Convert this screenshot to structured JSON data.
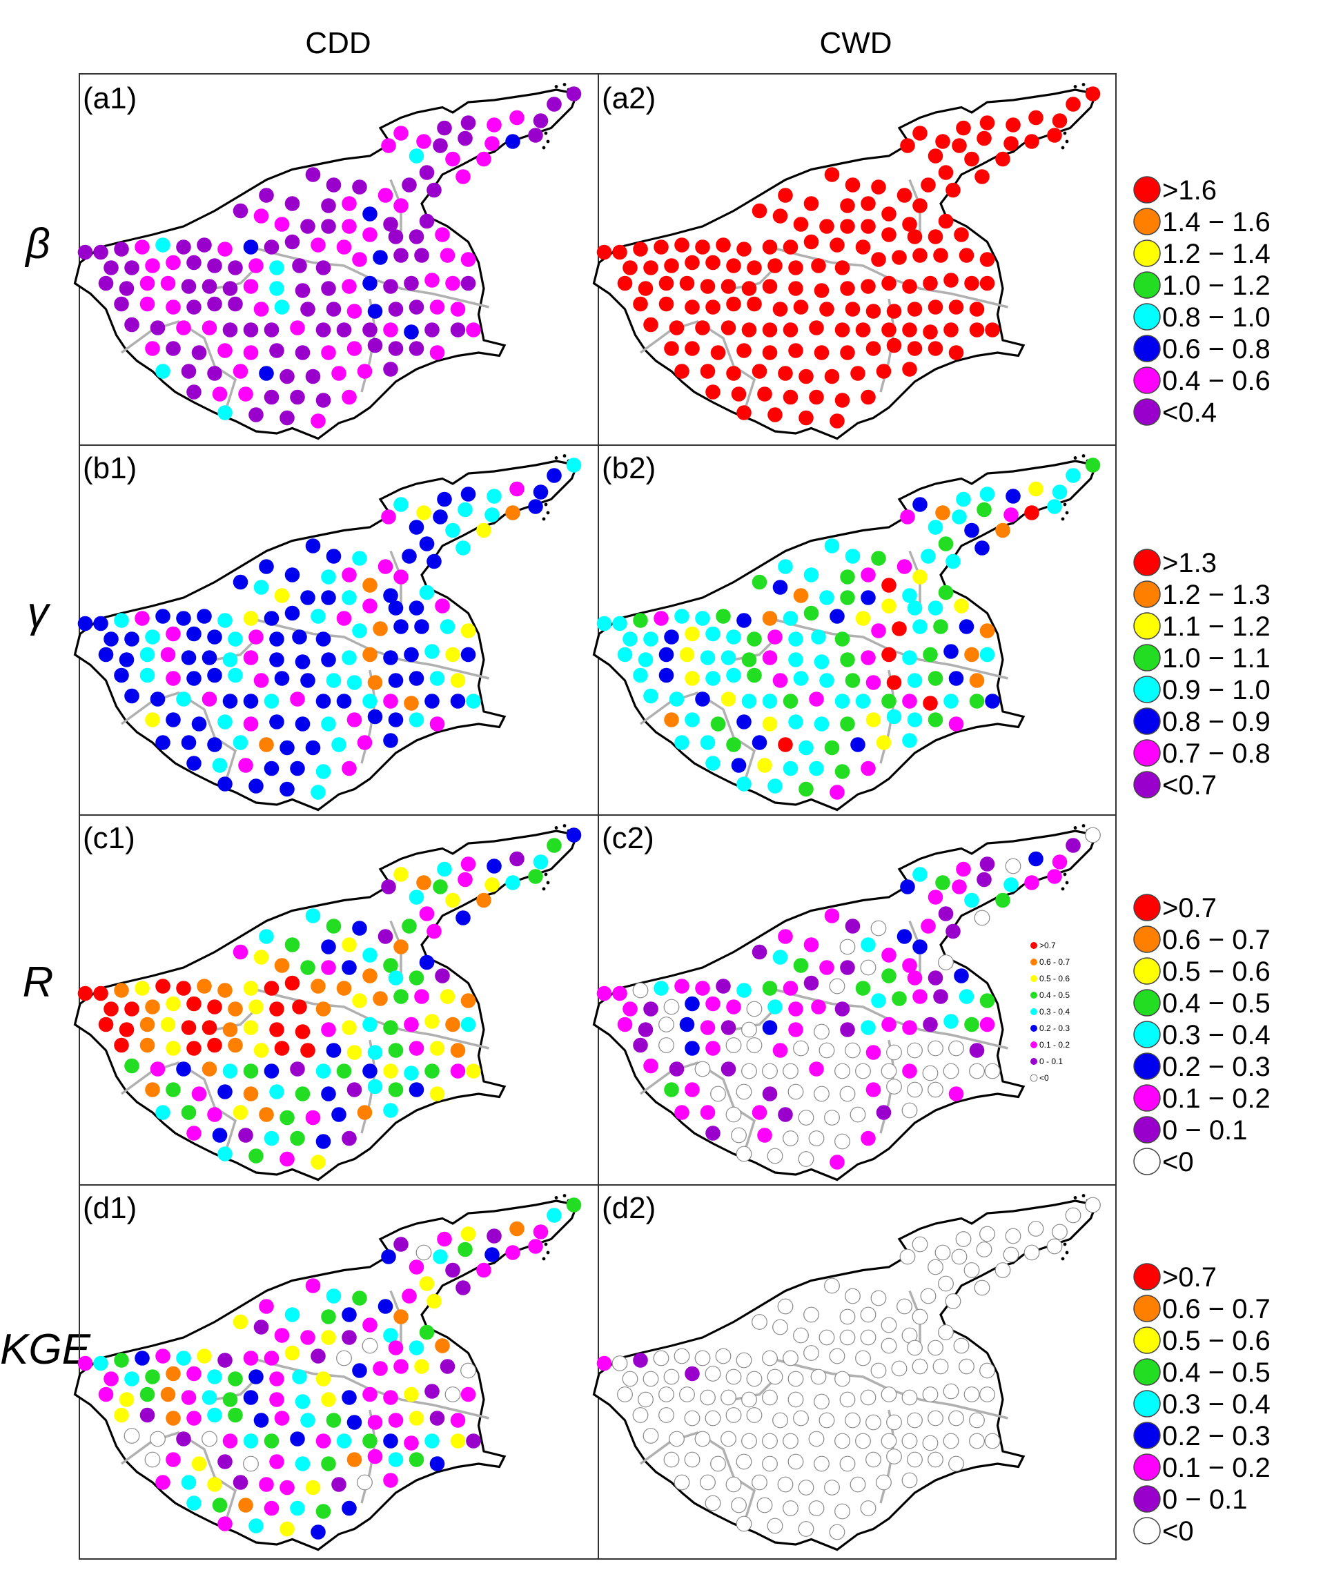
{
  "columns": [
    "CDD",
    "CWD"
  ],
  "rows": [
    {
      "symbol": "β",
      "panels": [
        "(a1)",
        "(a2)"
      ],
      "legend": [
        {
          "label": ">1.6",
          "color": "#ff0000"
        },
        {
          "label": "1.4 − 1.6",
          "color": "#ff8000"
        },
        {
          "label": "1.2 − 1.4",
          "color": "#ffff00"
        },
        {
          "label": "1.0 − 1.2",
          "color": "#22dd22"
        },
        {
          "label": "0.8 − 1.0",
          "color": "#00ffff"
        },
        {
          "label": "0.6 − 0.8",
          "color": "#0000ee"
        },
        {
          "label": "0.4 − 0.6",
          "color": "#ff00ff"
        },
        {
          "label": "<0.4",
          "color": "#9900cc"
        }
      ]
    },
    {
      "symbol": "γ",
      "panels": [
        "(b1)",
        "(b2)"
      ],
      "legend": [
        {
          "label": ">1.3",
          "color": "#ff0000"
        },
        {
          "label": "1.2 − 1.3",
          "color": "#ff8000"
        },
        {
          "label": "1.1 − 1.2",
          "color": "#ffff00"
        },
        {
          "label": "1.0 − 1.1",
          "color": "#22dd22"
        },
        {
          "label": "0.9 − 1.0",
          "color": "#00ffff"
        },
        {
          "label": "0.8 − 0.9",
          "color": "#0000ee"
        },
        {
          "label": "0.7 − 0.8",
          "color": "#ff00ff"
        },
        {
          "label": "<0.7",
          "color": "#9900cc"
        }
      ]
    },
    {
      "symbol": "R",
      "panels": [
        "(c1)",
        "(c2)"
      ],
      "legend": [
        {
          "label": ">0.7",
          "color": "#ff0000"
        },
        {
          "label": "0.6 − 0.7",
          "color": "#ff8000"
        },
        {
          "label": "0.5 − 0.6",
          "color": "#ffff00"
        },
        {
          "label": "0.4 − 0.5",
          "color": "#22dd22"
        },
        {
          "label": "0.3 − 0.4",
          "color": "#00ffff"
        },
        {
          "label": "0.2 − 0.3",
          "color": "#0000ee"
        },
        {
          "label": "0.1 − 0.2",
          "color": "#ff00ff"
        },
        {
          "label": "0 − 0.1",
          "color": "#9900cc"
        },
        {
          "label": "<0",
          "color": "#ffffff"
        }
      ],
      "inset_legend": [
        {
          "label": ">0.7",
          "color": "#ff0000"
        },
        {
          "label": "0.6 - 0.7",
          "color": "#ff8000"
        },
        {
          "label": "0.5 - 0.6",
          "color": "#ffff00"
        },
        {
          "label": "0.4 - 0.5",
          "color": "#22dd22"
        },
        {
          "label": "0.3 - 0.4",
          "color": "#00ffff"
        },
        {
          "label": "0.2 - 0.3",
          "color": "#0000ee"
        },
        {
          "label": "0.1 - 0.2",
          "color": "#ff00ff"
        },
        {
          "label": "0 - 0.1",
          "color": "#9900cc"
        },
        {
          "label": "<0",
          "color": "#ffffff"
        }
      ]
    },
    {
      "symbol": "KGE",
      "panels": [
        "(d1)",
        "(d2)"
      ],
      "legend": [
        {
          "label": ">0.7",
          "color": "#ff0000"
        },
        {
          "label": "0.6 − 0.7",
          "color": "#ff8000"
        },
        {
          "label": "0.5 − 0.6",
          "color": "#ffff00"
        },
        {
          "label": "0.4 − 0.5",
          "color": "#22dd22"
        },
        {
          "label": "0.3 − 0.4",
          "color": "#00ffff"
        },
        {
          "label": "0.2 − 0.3",
          "color": "#0000ee"
        },
        {
          "label": "0.1 − 0.2",
          "color": "#ff00ff"
        },
        {
          "label": "0 − 0.1",
          "color": "#9900cc"
        },
        {
          "label": "<0",
          "color": "#ffffff"
        }
      ]
    }
  ]
}
